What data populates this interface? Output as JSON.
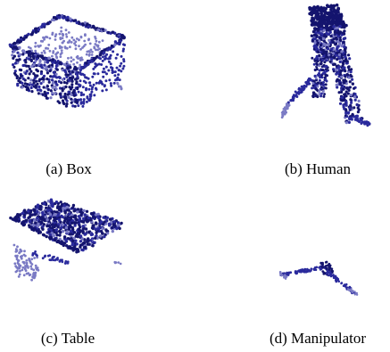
{
  "figure": {
    "point_color_dark": "#14146e",
    "point_color_mid": "#2a2a9c",
    "point_color_light": "#7a7ac4",
    "panels": [
      {
        "id": "box",
        "caption": "(a) Box",
        "object": "box point cloud"
      },
      {
        "id": "human",
        "caption": "(b) Human",
        "object": "human point cloud"
      },
      {
        "id": "table",
        "caption": "(c) Table",
        "object": "table point cloud"
      },
      {
        "id": "manipulator",
        "caption": "(d) Manipulator",
        "object": "manipulator point cloud"
      }
    ]
  }
}
